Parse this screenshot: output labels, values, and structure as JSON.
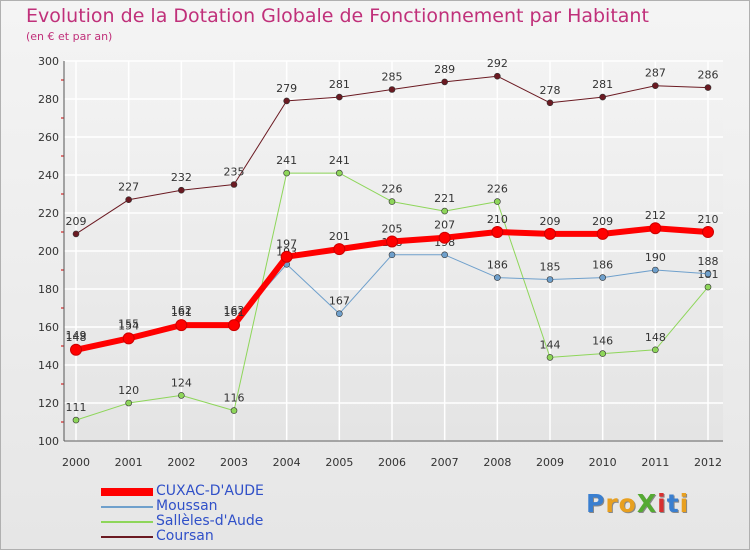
{
  "title": "Evolution de la Dotation Globale de Fonctionnement par Habitant",
  "subtitle": "(en € et par an)",
  "logo": {
    "text": "ProXiti",
    "colors": [
      "#3a7fd0",
      "#e8a020",
      "#e8a020",
      "#55aa33",
      "#d83030",
      "#3a7fd0",
      "#e8a020"
    ]
  },
  "chart_data": {
    "type": "line",
    "title": "Evolution de la Dotation Globale de Fonctionnement par Habitant",
    "subtitle": "(en € et par an)",
    "x": [
      "2000",
      "2001",
      "2002",
      "2003",
      "2004",
      "2005",
      "2006",
      "2007",
      "2008",
      "2009",
      "2010",
      "2011",
      "2012"
    ],
    "ylim": [
      100,
      300
    ],
    "yticks": [
      "100",
      "120",
      "140",
      "160",
      "180",
      "200",
      "220",
      "240",
      "260",
      "280",
      "300"
    ],
    "grid": true,
    "legend_position": "bottom-left",
    "series": [
      {
        "name": "Coursan",
        "color": "#6b1a22",
        "width": 1,
        "values": [
          209,
          227,
          232,
          235,
          279,
          281,
          285,
          289,
          292,
          278,
          281,
          287,
          286
        ],
        "labels": [
          "209",
          "227",
          "232",
          "235",
          "279",
          "281",
          "285",
          "289",
          "292",
          "278",
          "281",
          "287",
          "286"
        ]
      },
      {
        "name": "Sallèles-d'Aude",
        "color": "#8ed65a",
        "width": 1,
        "values": [
          111,
          120,
          124,
          116,
          241,
          241,
          226,
          221,
          226,
          144,
          146,
          148,
          181
        ],
        "labels": [
          "111",
          "120",
          "124",
          "116",
          "241",
          "241",
          "226",
          "221",
          "226",
          "144",
          "146",
          "148",
          "181"
        ]
      },
      {
        "name": "Moussan",
        "color": "#6fa0cc",
        "width": 1,
        "values": [
          149,
          155,
          162,
          162,
          193,
          167,
          198,
          198,
          186,
          185,
          186,
          190,
          188
        ],
        "labels": [
          "149",
          "155",
          "162",
          "162",
          "193",
          "167",
          "198",
          "198",
          "186",
          "185",
          "186",
          "190",
          "188"
        ]
      },
      {
        "name": "CUXAC-D'AUDE",
        "color": "#ff0000",
        "width": 6,
        "values": [
          148,
          154,
          161,
          161,
          197,
          201,
          205,
          207,
          210,
          209,
          209,
          212,
          210
        ],
        "labels": [
          "148",
          "154",
          "161",
          "161",
          "197",
          "201",
          "205",
          "207",
          "210",
          "209",
          "209",
          "212",
          "210"
        ]
      }
    ],
    "legend_order": [
      "CUXAC-D'AUDE",
      "Moussan",
      "Sallèles-d'Aude",
      "Coursan"
    ]
  }
}
